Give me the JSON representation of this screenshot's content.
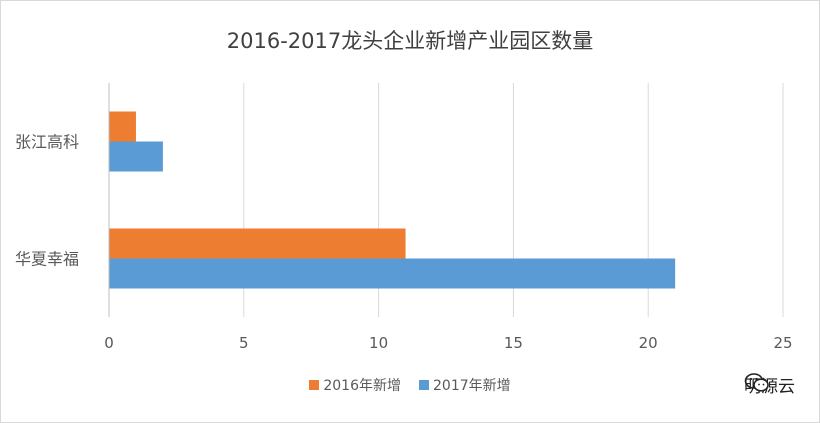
{
  "chart_data": {
    "type": "bar",
    "orientation": "horizontal",
    "title": "2016-2017龙头企业新增产业园区数量",
    "categories": [
      "张江高科",
      "华夏幸福"
    ],
    "series": [
      {
        "name": "2016年新增",
        "color": "#ED7D31",
        "values": [
          1,
          11
        ]
      },
      {
        "name": "2017年新增",
        "color": "#5B9BD5",
        "values": [
          2,
          21
        ]
      }
    ],
    "xlim": [
      0,
      25
    ],
    "xticks": [
      "0",
      "5",
      "10",
      "15",
      "20",
      "25"
    ],
    "grid": true,
    "legend_position": "bottom"
  },
  "watermark": {
    "icon": "wechat-icon",
    "text": "明源云"
  }
}
